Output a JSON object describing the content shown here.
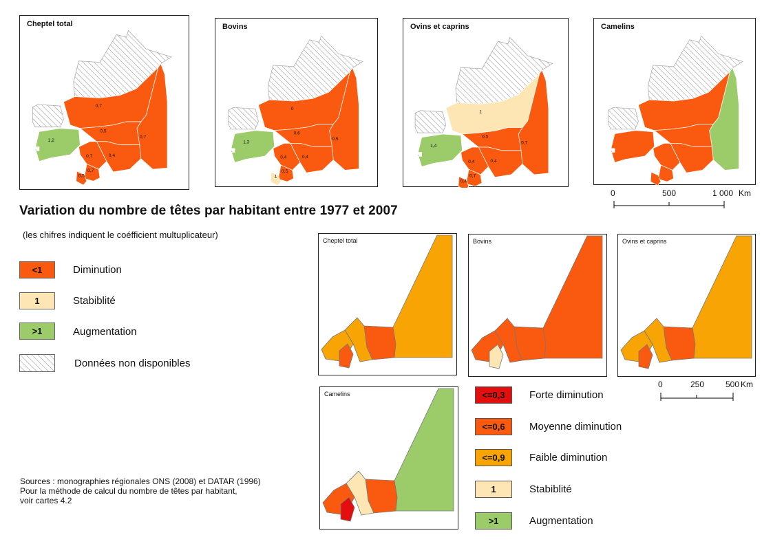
{
  "title": "Variation du nombre de têtes par habitant entre 1977 et 2007",
  "subtitle": "(les chifres indiquent le coéfficient multuplicateur)",
  "colors": {
    "forte": "#e30e0e",
    "moyenne": "#fa5a0f",
    "faible": "#f7a404",
    "stabilite": "#fde6b4",
    "augmentation": "#9ccc6a",
    "nodata": "#ffffff",
    "border": "#666666"
  },
  "top_maps": [
    {
      "title": "Cheptel total",
      "coef": {
        "tiris": "",
        "hodh_e": "0,7",
        "adrar": "0,7",
        "trarza": "1,2",
        "tagant": "0,5",
        "assaba": "0,4",
        "brakna": "0,7",
        "gorgol": "0,7",
        "guidi": "0,5"
      }
    },
    {
      "title": "Bovins",
      "coef": {
        "tiris": "",
        "hodh_e": "0,5",
        "adrar": "0",
        "trarza": "1,3",
        "tagant": "0,6",
        "assaba": "0,4",
        "brakna": "0,4",
        "gorgol": "0,5",
        "guidi": "1"
      }
    },
    {
      "title": "Ovins et caprins",
      "coef": {
        "tiris": "",
        "hodh_e": "0,7",
        "adrar": "1",
        "trarza": "1,4",
        "tagant": "0,5",
        "assaba": "0,4",
        "brakna": "0,4",
        "gorgol": "0,7",
        "guidi": "0,4"
      }
    },
    {
      "title": "Camelins",
      "coef": {}
    }
  ],
  "legend1": [
    {
      "box": "<1",
      "label": "Diminution"
    },
    {
      "box": "1",
      "label": "Stabiblité"
    },
    {
      "box": ">1",
      "label": "Augmentation"
    },
    {
      "box": "",
      "label": "Données non disponibles"
    }
  ],
  "scale1": {
    "ticks": [
      "0",
      "500",
      "1 000"
    ],
    "unit": "Km"
  },
  "bottom_maps": [
    {
      "title": "Cheptel total"
    },
    {
      "title": "Bovins"
    },
    {
      "title": "Ovins et caprins"
    },
    {
      "title": "Camelins"
    }
  ],
  "legend2": [
    {
      "box": "<=0,3",
      "label": "Forte diminution"
    },
    {
      "box": "<=0,6",
      "label": "Moyenne diminution"
    },
    {
      "box": "<=0,9",
      "label": "Faible diminution"
    },
    {
      "box": "1",
      "label": "Stabiblité"
    },
    {
      "box": ">1",
      "label": "Augmentation"
    }
  ],
  "scale2": {
    "ticks": [
      "0",
      "250",
      "500"
    ],
    "unit": "Km"
  },
  "sources": [
    "Sources : monographies régionales ONS (2008) et DATAR (1996)",
    "Pour la méthode de calcul du nombre de têtes par habitant,",
    "voir cartes 4.2"
  ]
}
